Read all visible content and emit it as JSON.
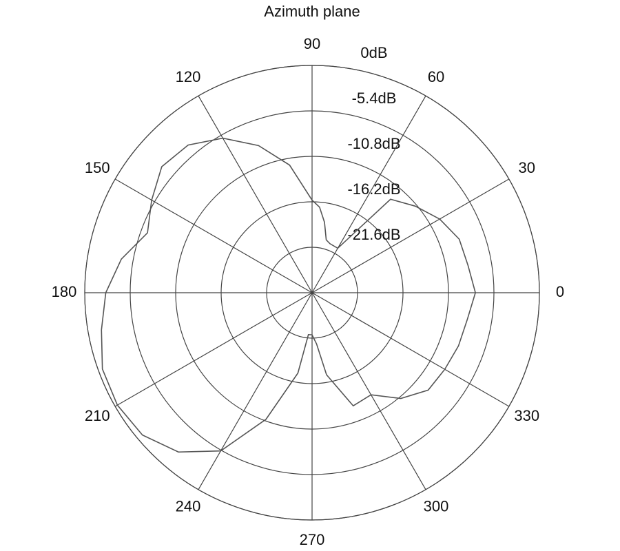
{
  "chart_data": {
    "type": "polar",
    "title": "Azimuth plane",
    "x": [
      0,
      10,
      20,
      30,
      40,
      50,
      60,
      70,
      75,
      80,
      85,
      90,
      100,
      110,
      120,
      130,
      140,
      150,
      160,
      170,
      180,
      190,
      200,
      210,
      220,
      230,
      240,
      250,
      260,
      265,
      270,
      275,
      280,
      290,
      300,
      310,
      320,
      330,
      340,
      350,
      360
    ],
    "series": [
      {
        "color": "#555555",
        "values": [
          -7.6,
          -8.2,
          -8.4,
          -9.5,
          -11.0,
          -12.5,
          -20.9,
          -20.8,
          -20.5,
          -18.5,
          -16.8,
          -16.0,
          -11.6,
          -8.4,
          -5.8,
          -4.1,
          -3.7,
          -5.0,
          -6.2,
          -4.0,
          -2.5,
          -1.6,
          -0.5,
          -0.3,
          -0.7,
          -2.3,
          -5.3,
          -11.0,
          -17.3,
          -22.0,
          -22.0,
          -20.9,
          -17.1,
          -12.7,
          -13.0,
          -10.6,
          -9.0,
          -8.8,
          -8.5,
          -8.3,
          -7.6
        ]
      }
    ],
    "rlim": [
      -27,
      0
    ],
    "rticks": [
      {
        "value": 0,
        "label": "0dB"
      },
      {
        "value": -5.4,
        "label": "-5.4dB"
      },
      {
        "value": -10.8,
        "label": "-10.8dB"
      },
      {
        "value": -16.2,
        "label": "-16.2dB"
      },
      {
        "value": -21.6,
        "label": "-21.6dB"
      }
    ],
    "thetaticks": [
      0,
      30,
      60,
      90,
      120,
      150,
      180,
      210,
      240,
      270,
      300,
      330
    ]
  }
}
